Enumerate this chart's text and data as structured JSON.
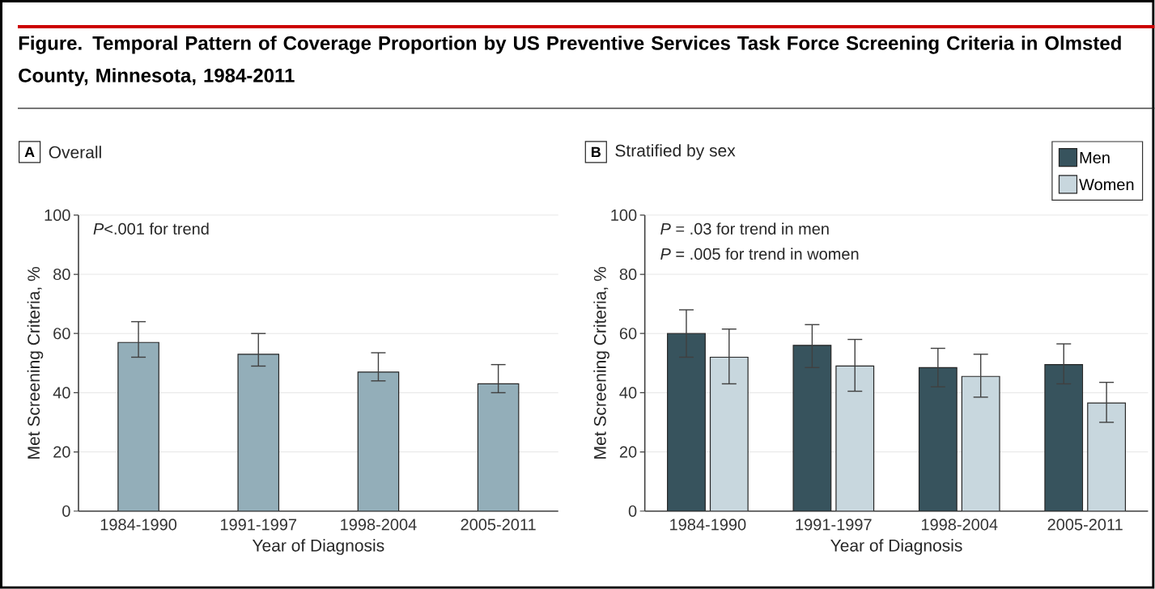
{
  "chart_data": [
    {
      "type": "bar",
      "title": "Figure. Temporal Pattern of Coverage Proportion by US Preventive Services Task Force Screening Criteria in Olmsted County, Minnesota, 1984-2011",
      "subtitle": "Overall",
      "annotations": [
        "A",
        "*P*<.001 for trend"
      ],
      "xlabel": "Year of Diagnosis",
      "ylabel": "Met Screening Criteria, %",
      "categories": [
        "1984-1990",
        "1991-1997",
        "1998-2004",
        "2005-2011"
      ],
      "series": [
        {
          "color": "#93aeb9",
          "values": [
            57,
            53,
            47,
            43
          ],
          "errors": [
            [
              52,
              64
            ],
            [
              49,
              60
            ],
            [
              44,
              53.5
            ],
            [
              40,
              49.5
            ]
          ]
        }
      ],
      "ylim": [
        0,
        100
      ],
      "yticks": [
        0,
        20,
        40,
        60,
        80,
        100
      ],
      "grid": "y",
      "legend": false
    },
    {
      "type": "bar",
      "subtitle": "Stratified by sex",
      "annotations": [
        "B",
        "*P* = .03 for trend in men",
        "*P* = .005 for trend in women"
      ],
      "xlabel": "Year of Diagnosis",
      "ylabel": "Met Screening Criteria, %",
      "categories": [
        "1984-1990",
        "1991-1997",
        "1998-2004",
        "2005-2011"
      ],
      "series": [
        {
          "name": "Men",
          "color": "#37535d",
          "values": [
            60,
            56,
            48.5,
            49.5
          ],
          "errors": [
            [
              52,
              68
            ],
            [
              48.5,
              63
            ],
            [
              42,
              55
            ],
            [
              43,
              56.5
            ]
          ]
        },
        {
          "name": "Women",
          "color": "#c8d7de",
          "values": [
            52,
            49,
            45.5,
            36.5
          ],
          "errors": [
            [
              43,
              61.5
            ],
            [
              40.5,
              58
            ],
            [
              38.5,
              53
            ],
            [
              30,
              43.5
            ]
          ]
        }
      ],
      "ylim": [
        0,
        100
      ],
      "yticks": [
        0,
        20,
        40,
        60,
        80,
        100
      ],
      "grid": "y",
      "legend": "top right"
    }
  ]
}
